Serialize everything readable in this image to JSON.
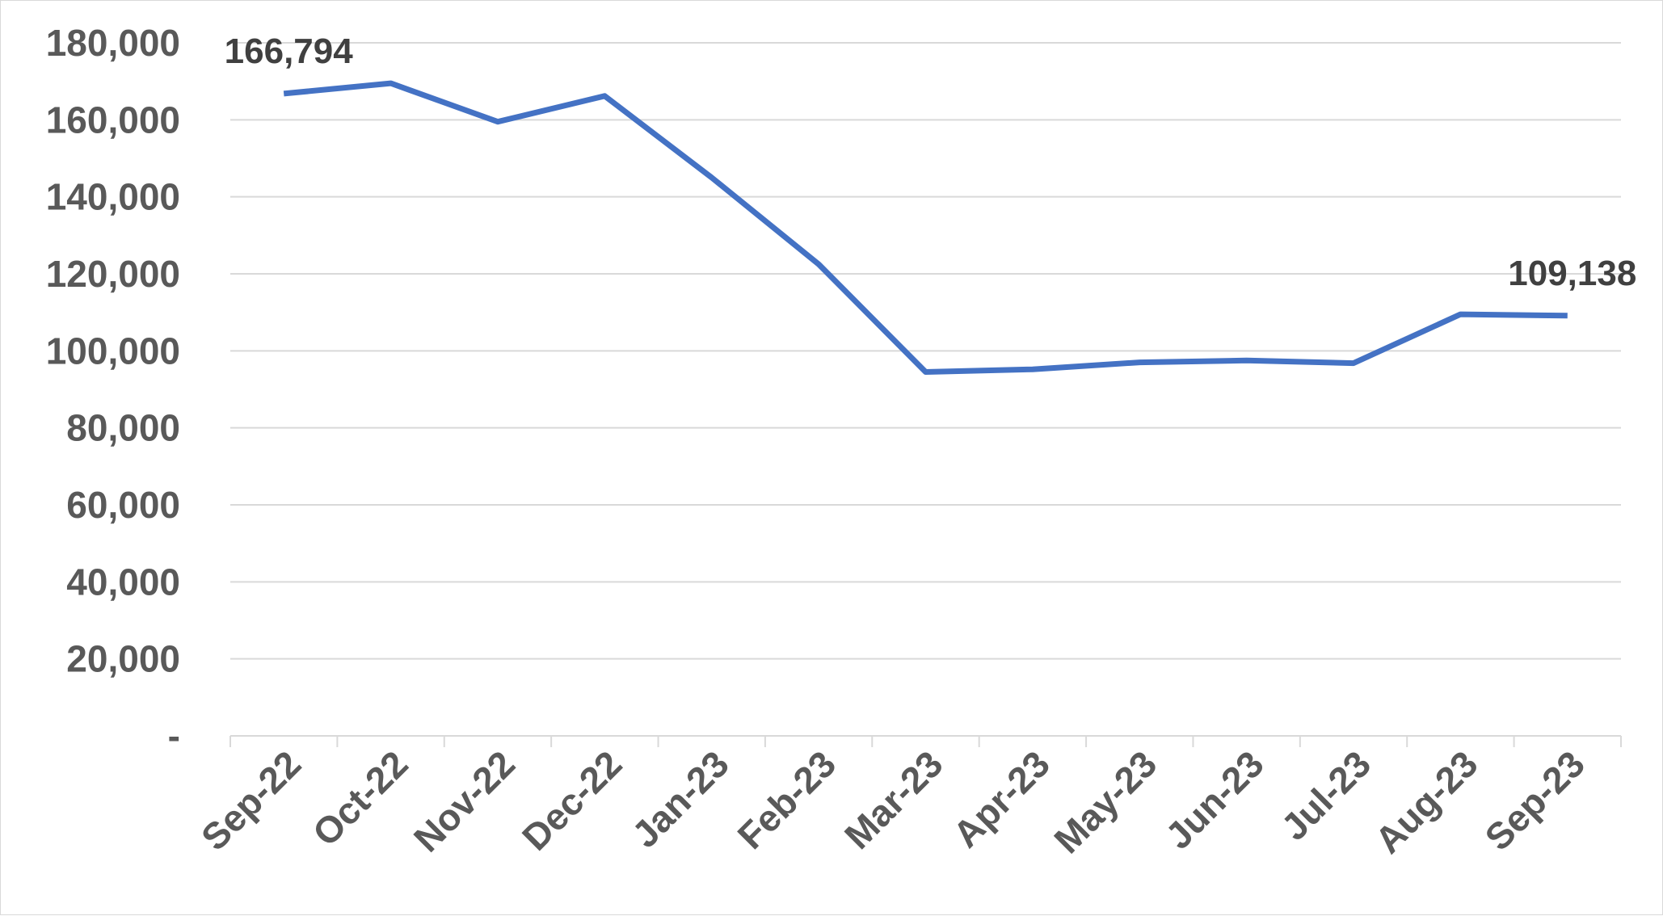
{
  "chart_data": {
    "type": "line",
    "title": "",
    "xlabel": "",
    "ylabel": "",
    "categories": [
      "Sep-22",
      "Oct-22",
      "Nov-22",
      "Dec-22",
      "Jan-23",
      "Feb-23",
      "Mar-23",
      "Apr-23",
      "May-23",
      "Jun-23",
      "Jul-23",
      "Aug-23",
      "Sep-23"
    ],
    "series": [
      {
        "values": [
          166794,
          169500,
          159500,
          166200,
          145000,
          122500,
          94500,
          95200,
          97000,
          97500,
          96800,
          109500,
          109138
        ],
        "color": "#4472C4"
      }
    ],
    "ylim": [
      0,
      180000
    ],
    "yticks": [
      0,
      20000,
      40000,
      60000,
      80000,
      100000,
      120000,
      140000,
      160000,
      180000
    ],
    "ytick_labels": [
      "-",
      "20,000",
      "40,000",
      "60,000",
      "80,000",
      "100,000",
      "120,000",
      "140,000",
      "160,000",
      "180,000"
    ],
    "grid": true,
    "legend": "none",
    "data_labels": [
      {
        "index": 0,
        "text": "166,794"
      },
      {
        "index": 12,
        "text": "109,138"
      }
    ]
  }
}
